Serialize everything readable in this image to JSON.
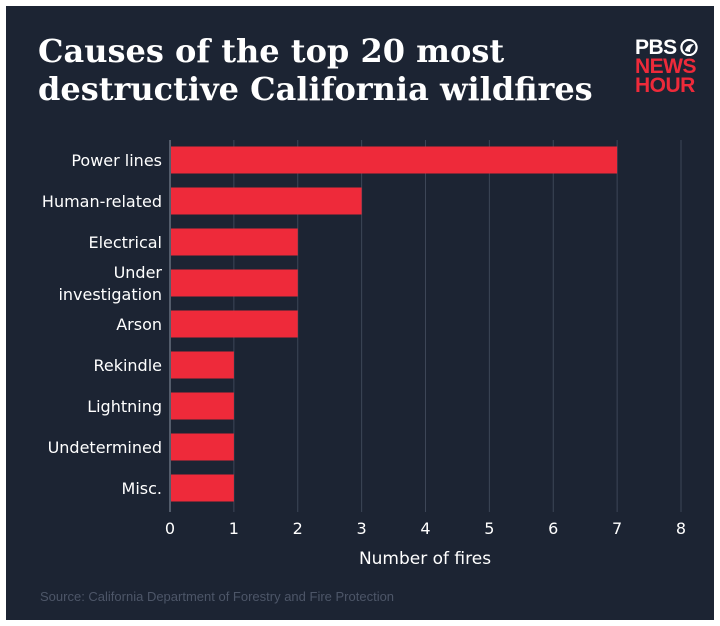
{
  "title": "Causes of the top 20 most destructive California wildfires",
  "logo": {
    "line1": "PBS",
    "line2": "NEWS",
    "line3": "HOUR"
  },
  "source": "Source: California Department of Forestry and Fire Protection",
  "colors": {
    "background": "#1c2433",
    "bar": "#ee2a3a",
    "grid": "#3d4657",
    "text": "#ffffff"
  },
  "chart_data": {
    "type": "bar",
    "orientation": "horizontal",
    "categories": [
      "Power lines",
      "Human-related",
      "Electrical",
      "Under investigation",
      "Arson",
      "Rekindle",
      "Lightning",
      "Undetermined",
      "Misc."
    ],
    "values": [
      7,
      3,
      2,
      2,
      2,
      1,
      1,
      1,
      1
    ],
    "xlabel": "Number of fires",
    "ylabel": "",
    "xlim": [
      0,
      8
    ],
    "xticks": [
      0,
      1,
      2,
      3,
      4,
      5,
      6,
      7,
      8
    ],
    "grid": true
  }
}
